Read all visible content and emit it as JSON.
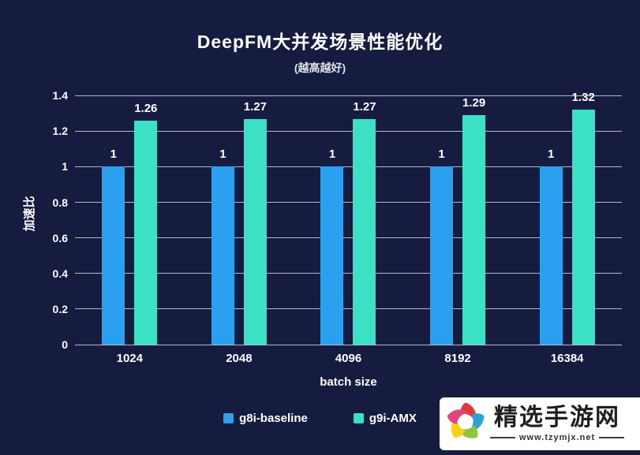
{
  "title": "DeepFM大并发场景性能优化",
  "subtitle": "(越高越好)",
  "chart_data": {
    "type": "bar",
    "categories": [
      "1024",
      "2048",
      "4096",
      "8192",
      "16384"
    ],
    "series": [
      {
        "name": "g8i-baseline",
        "color": "#2aa0ee",
        "values": [
          1,
          1,
          1,
          1,
          1
        ],
        "value_labels": [
          "1",
          "1",
          "1",
          "1",
          "1"
        ]
      },
      {
        "name": "g9i-AMX",
        "color": "#3ce0c4",
        "values": [
          1.26,
          1.27,
          1.27,
          1.29,
          1.32
        ],
        "value_labels": [
          "1.26",
          "1.27",
          "1.27",
          "1.29",
          "1.32"
        ]
      }
    ],
    "title": "DeepFM大并发场景性能优化",
    "xlabel": "batch size",
    "ylabel": "加速比",
    "ylim": [
      0,
      1.45
    ],
    "yticks": [
      {
        "value": 0,
        "label": "0"
      },
      {
        "value": 0.2,
        "label": "0.2"
      },
      {
        "value": 0.4,
        "label": "0.4"
      },
      {
        "value": 0.6,
        "label": "0.6"
      },
      {
        "value": 0.8,
        "label": "0.8"
      },
      {
        "value": 1,
        "label": "1"
      },
      {
        "value": 1.2,
        "label": "1.2"
      },
      {
        "value": 1.4,
        "label": "1.4"
      }
    ],
    "grid": true,
    "legend_position": "bottom"
  },
  "colors": {
    "background": "#151c40",
    "gridline": "rgba(210,215,228,0.85)",
    "text": "#ffffff"
  },
  "watermark": {
    "site_name": "精选手游网",
    "site_url": "www.tzymjx.net",
    "logo": "pinwheel-logo"
  }
}
